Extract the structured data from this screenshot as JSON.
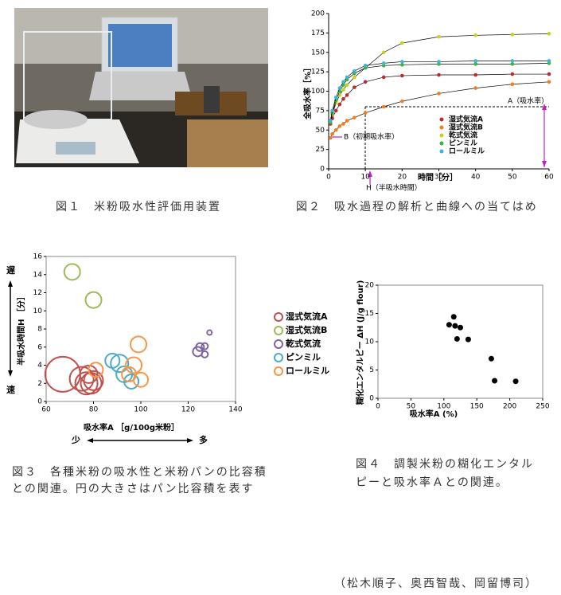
{
  "chart_data": [
    {
      "type": "line",
      "xlabel": "時間［分］",
      "ylabel": "全吸水率［%］",
      "xlim": [
        0,
        60
      ],
      "xticks": [
        0,
        10,
        20,
        30,
        40,
        50,
        60
      ],
      "ylim": [
        0,
        200
      ],
      "yticks": [
        0,
        25,
        50,
        75,
        100,
        125,
        150,
        175,
        200
      ],
      "x": [
        0.5,
        1,
        2,
        3,
        4,
        5,
        7,
        10,
        15,
        20,
        30,
        40,
        50,
        60
      ],
      "annotations": [
        "A（吸水率）",
        "B（初期吸水率）",
        "H（半吸水時間）"
      ],
      "series": [
        {
          "name": "湿式気流A",
          "color": "#c0282d",
          "values": [
            58,
            65,
            75,
            83,
            90,
            95,
            105,
            112,
            118,
            120,
            121,
            121,
            122,
            122
          ]
        },
        {
          "name": "湿式気流B",
          "color": "#f07d1e",
          "values": [
            40,
            45,
            50,
            55,
            58,
            62,
            66,
            72,
            80,
            87,
            97,
            104,
            109,
            112
          ]
        },
        {
          "name": "乾式気流",
          "color": "#c8d21e",
          "values": [
            60,
            70,
            85,
            95,
            102,
            108,
            118,
            130,
            150,
            162,
            170,
            172,
            173,
            174
          ]
        },
        {
          "name": "ピンミル",
          "color": "#3cb43c",
          "values": [
            60,
            72,
            88,
            100,
            108,
            115,
            123,
            130,
            133,
            134,
            135,
            135,
            135,
            136
          ]
        },
        {
          "name": "ロールミル",
          "color": "#3cb4dc",
          "values": [
            62,
            75,
            92,
            104,
            112,
            118,
            126,
            133,
            136,
            138,
            138,
            139,
            139,
            139
          ]
        }
      ]
    },
    {
      "type": "bubble",
      "xlabel": "吸水率A ［g/100g米粉］",
      "ylabel": "半吸水時間H ［分］",
      "xlim": [
        60,
        140
      ],
      "xticks": [
        60,
        80,
        100,
        120,
        140
      ],
      "ylim": [
        0,
        16
      ],
      "yticks": [
        0,
        2,
        4,
        6,
        8,
        10,
        12,
        14,
        16
      ],
      "axis_notes": [
        "遅",
        "速",
        "少",
        "多"
      ],
      "series": [
        {
          "name": "湿式気流A",
          "color": "#c0504d",
          "x": [
            67,
            75,
            77,
            79,
            80,
            78
          ],
          "values": [
            3,
            2.5,
            2,
            2,
            2.3,
            3
          ],
          "sizes": [
            22,
            15,
            14,
            13,
            12,
            11
          ]
        },
        {
          "name": "湿式気流B",
          "color": "#9bbb59",
          "x": [
            71,
            80
          ],
          "values": [
            14.3,
            11.2
          ],
          "sizes": [
            10,
            10
          ]
        },
        {
          "name": "乾式気流",
          "color": "#8064a2",
          "x": [
            124,
            125,
            127,
            127,
            129
          ],
          "values": [
            5.5,
            6,
            5.2,
            6.1,
            7.6
          ],
          "sizes": [
            6,
            5,
            4,
            4,
            3
          ]
        },
        {
          "name": "ピンミル",
          "color": "#4bacc6",
          "x": [
            88,
            91,
            93,
            96
          ],
          "values": [
            4.5,
            4.2,
            3,
            2.2
          ],
          "sizes": [
            9,
            11,
            10,
            9
          ]
        },
        {
          "name": "ロールミル",
          "color": "#f79646",
          "x": [
            81,
            97,
            99,
            100,
            95
          ],
          "values": [
            3.5,
            4,
            6.3,
            2.4,
            3
          ],
          "sizes": [
            9,
            10,
            10,
            9,
            9
          ]
        }
      ]
    },
    {
      "type": "scatter",
      "xlabel": "吸水率A (%)",
      "ylabel": "糊化エンタルピー ΔH (J/g flour)",
      "color": "#000000",
      "xlim": [
        0,
        250
      ],
      "xticks": [
        0,
        50,
        100,
        150,
        200,
        250
      ],
      "ylim": [
        0,
        20
      ],
      "yticks": [
        0,
        5,
        10,
        15,
        20
      ],
      "x": [
        108,
        115,
        117,
        125,
        120,
        137,
        172,
        177,
        209
      ],
      "values": [
        13,
        14.4,
        12.8,
        12.5,
        10.5,
        10.4,
        7,
        3.1,
        3
      ]
    }
  ],
  "captions": [
    [
      "図１　米粉吸水性評価用装置"
    ],
    [
      "図２　吸水過程の解析と曲線への当てはめ"
    ],
    [
      "図３　各種米粉の吸水性と米粉パンの比容積",
      "との関連。円の大きさはパン比容積を表す"
    ],
    [
      "図４　調製米粉の糊化エンタル",
      "ピーと吸水率Ａとの関連。"
    ]
  ],
  "credit": "（松木順子、奥西智哉、岡留博司）"
}
